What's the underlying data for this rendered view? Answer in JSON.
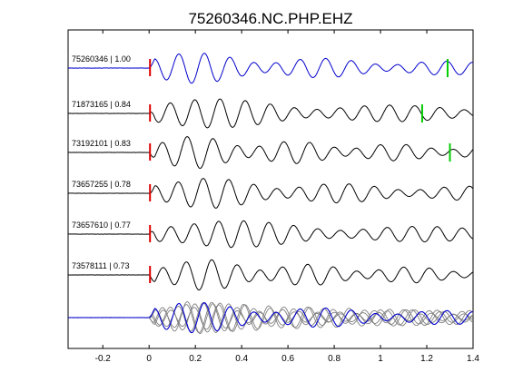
{
  "chart_data": {
    "type": "line",
    "title": "75260346.NC.PHP.EHZ",
    "xlabel": "",
    "ylabel": "",
    "xlim": [
      -0.35,
      1.4
    ],
    "x_ticks": [
      -0.2,
      0,
      0.2,
      0.4,
      0.6,
      0.8,
      1,
      1.2,
      1.4
    ],
    "x_tick_labels": [
      "-0.2",
      "0",
      "0.2",
      "0.4",
      "0.6",
      "0.8",
      "1",
      "1.2",
      "1.4"
    ],
    "grid": false,
    "colors": {
      "reference": "#0000cc",
      "trace": "#000000",
      "stack": "#808080",
      "p_pick": "#dd0000",
      "s_pick": "#00cc00"
    },
    "traces": [
      {
        "label": "75260346 | 1.00",
        "p_pick": 0.0,
        "s_pick": 1.29,
        "reference": true
      },
      {
        "label": "71873165 | 0.84",
        "p_pick": 0.0,
        "s_pick": 1.18
      },
      {
        "label": "73192101 | 0.83",
        "p_pick": 0.0,
        "s_pick": 1.3
      },
      {
        "label": "73657255 | 0.78",
        "p_pick": 0.0
      },
      {
        "label": "73657610 | 0.77",
        "p_pick": 0.0
      },
      {
        "label": "73578111 | 0.73",
        "p_pick": 0.0
      }
    ]
  }
}
